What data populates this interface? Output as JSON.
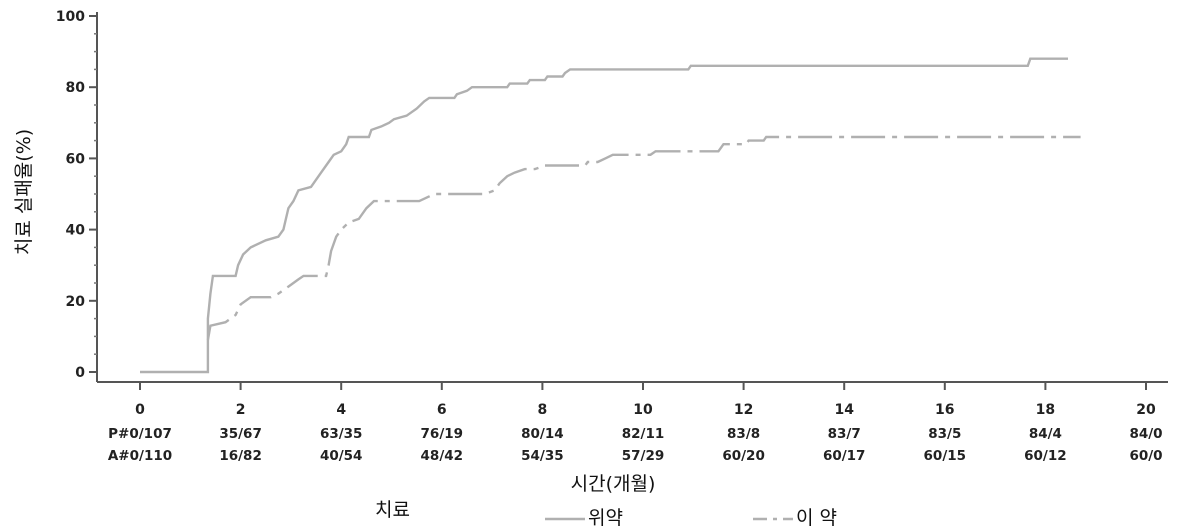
{
  "chart_data": {
    "type": "line",
    "xlabel": "시간(개월)",
    "ylabel": "치료 실패율(%)",
    "xlim": [
      0,
      20
    ],
    "ylim": [
      0,
      100
    ],
    "x_ticks": [
      "0",
      "2",
      "4",
      "6",
      "8",
      "10",
      "12",
      "14",
      "16",
      "18",
      "20"
    ],
    "y_ticks": [
      "0",
      "20",
      "40",
      "60",
      "80",
      "100"
    ],
    "grid": false,
    "legend": {
      "title": "치료",
      "placement": "bottom"
    },
    "series": [
      {
        "name": "위약",
        "style": "solid",
        "color": "#b0b0b0",
        "points": [
          [
            0,
            0
          ],
          [
            1.35,
            0
          ],
          [
            1.35,
            15
          ],
          [
            1.4,
            22
          ],
          [
            1.45,
            27
          ],
          [
            1.9,
            27
          ],
          [
            1.95,
            30
          ],
          [
            2.05,
            33
          ],
          [
            2.2,
            35
          ],
          [
            2.5,
            37
          ],
          [
            2.75,
            38
          ],
          [
            2.85,
            40
          ],
          [
            2.9,
            43
          ],
          [
            2.95,
            46
          ],
          [
            3.05,
            48
          ],
          [
            3.15,
            51
          ],
          [
            3.4,
            52
          ],
          [
            3.5,
            54
          ],
          [
            3.6,
            56
          ],
          [
            3.75,
            59
          ],
          [
            3.85,
            61
          ],
          [
            4.0,
            62
          ],
          [
            4.1,
            64
          ],
          [
            4.15,
            66
          ],
          [
            4.55,
            66
          ],
          [
            4.6,
            68
          ],
          [
            4.8,
            69
          ],
          [
            4.95,
            70
          ],
          [
            5.05,
            71
          ],
          [
            5.3,
            72
          ],
          [
            5.5,
            74
          ],
          [
            5.65,
            76
          ],
          [
            5.75,
            77
          ],
          [
            6.25,
            77
          ],
          [
            6.3,
            78
          ],
          [
            6.5,
            79
          ],
          [
            6.6,
            80
          ],
          [
            7.3,
            80
          ],
          [
            7.35,
            81
          ],
          [
            7.7,
            81
          ],
          [
            7.75,
            82
          ],
          [
            8.05,
            82
          ],
          [
            8.1,
            83
          ],
          [
            8.4,
            83
          ],
          [
            8.45,
            84
          ],
          [
            8.55,
            85
          ],
          [
            10.9,
            85
          ],
          [
            10.95,
            86
          ],
          [
            17.65,
            86
          ],
          [
            17.7,
            88
          ],
          [
            18.45,
            88
          ]
        ]
      },
      {
        "name": "이 약",
        "style": "dash-dot",
        "color": "#b0b0b0",
        "points": [
          [
            1.35,
            9
          ],
          [
            1.4,
            13
          ],
          [
            1.7,
            14
          ],
          [
            1.9,
            16
          ],
          [
            2.0,
            19
          ],
          [
            2.2,
            21
          ],
          [
            2.6,
            21
          ],
          [
            2.75,
            22
          ],
          [
            2.95,
            24
          ],
          [
            3.15,
            26
          ],
          [
            3.25,
            27
          ],
          [
            3.7,
            27
          ],
          [
            3.75,
            30
          ],
          [
            3.8,
            34
          ],
          [
            3.9,
            38
          ],
          [
            4.0,
            40
          ],
          [
            4.15,
            42
          ],
          [
            4.35,
            43
          ],
          [
            4.5,
            46
          ],
          [
            4.65,
            48
          ],
          [
            5.55,
            48
          ],
          [
            5.7,
            49
          ],
          [
            5.85,
            50
          ],
          [
            6.85,
            50
          ],
          [
            7.05,
            51
          ],
          [
            7.15,
            53
          ],
          [
            7.3,
            55
          ],
          [
            7.45,
            56
          ],
          [
            7.65,
            57
          ],
          [
            7.85,
            57
          ],
          [
            8.05,
            58
          ],
          [
            8.85,
            58
          ],
          [
            8.9,
            59
          ],
          [
            9.1,
            59
          ],
          [
            9.25,
            60
          ],
          [
            9.4,
            61
          ],
          [
            10.15,
            61
          ],
          [
            10.25,
            62
          ],
          [
            11.5,
            62
          ],
          [
            11.6,
            64
          ],
          [
            12.05,
            64
          ],
          [
            12.1,
            65
          ],
          [
            12.4,
            65
          ],
          [
            12.45,
            66
          ],
          [
            18.7,
            66
          ]
        ]
      }
    ],
    "risk_table": {
      "rows": [
        {
          "label": "P#",
          "values": [
            "P#0/107",
            "35/67",
            "63/35",
            "76/19",
            "80/14",
            "82/11",
            "83/8",
            "83/7",
            "83/5",
            "84/4",
            "84/0"
          ]
        },
        {
          "label": "A#",
          "values": [
            "A#0/110",
            "16/82",
            "40/54",
            "48/42",
            "54/35",
            "57/29",
            "60/20",
            "60/17",
            "60/15",
            "60/12",
            "60/0"
          ]
        }
      ]
    }
  }
}
